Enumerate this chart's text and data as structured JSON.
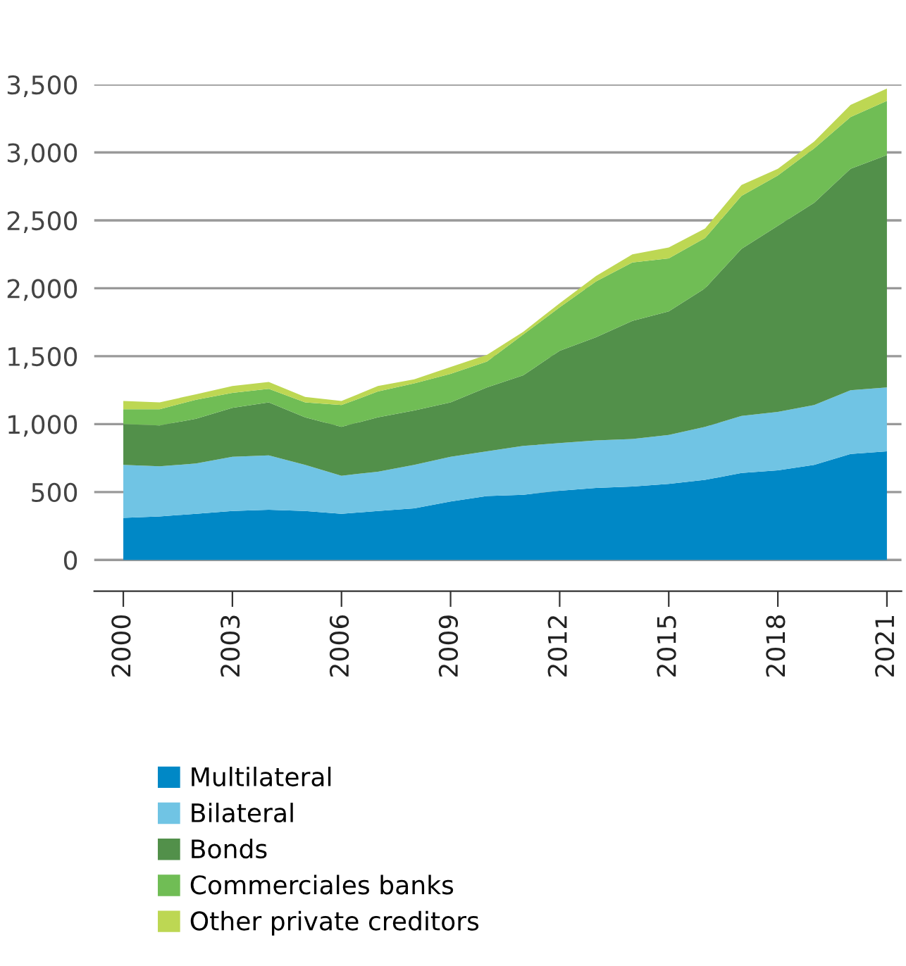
{
  "chart_data": {
    "type": "area",
    "stacked": true,
    "x": [
      2000,
      2001,
      2002,
      2003,
      2004,
      2005,
      2006,
      2007,
      2008,
      2009,
      2010,
      2011,
      2012,
      2013,
      2014,
      2015,
      2016,
      2017,
      2018,
      2019,
      2020,
      2021
    ],
    "series": [
      {
        "name": "Multilateral",
        "color": "#0088c6",
        "values": [
          310,
          320,
          340,
          360,
          370,
          360,
          340,
          360,
          380,
          430,
          470,
          480,
          510,
          530,
          540,
          560,
          590,
          640,
          660,
          700,
          780,
          800
        ]
      },
      {
        "name": "Bilateral",
        "color": "#70c4e4",
        "values": [
          390,
          370,
          370,
          400,
          400,
          340,
          280,
          290,
          320,
          330,
          330,
          360,
          350,
          350,
          350,
          360,
          390,
          420,
          430,
          440,
          470,
          470
        ]
      },
      {
        "name": "Bonds",
        "color": "#52904a",
        "values": [
          300,
          300,
          330,
          360,
          390,
          350,
          360,
          400,
          400,
          400,
          470,
          520,
          680,
          760,
          870,
          910,
          1020,
          1230,
          1370,
          1490,
          1630,
          1710
        ]
      },
      {
        "name": "Commerciales banks",
        "color": "#70bd55",
        "values": [
          110,
          120,
          140,
          110,
          100,
          110,
          160,
          190,
          200,
          210,
          190,
          300,
          320,
          410,
          430,
          390,
          370,
          390,
          370,
          400,
          380,
          400
        ]
      },
      {
        "name": "Other private creditors",
        "color": "#bdd753",
        "values": [
          60,
          50,
          40,
          50,
          50,
          40,
          30,
          40,
          30,
          50,
          50,
          20,
          30,
          40,
          60,
          80,
          70,
          80,
          50,
          50,
          90,
          90
        ]
      }
    ],
    "xlim": [
      1999.2,
      2021.4
    ],
    "xticks": [
      2000,
      2003,
      2006,
      2009,
      2012,
      2015,
      2018,
      2021
    ],
    "ylim": [
      -230,
      3500
    ],
    "yticks": [
      0,
      {
        "value": 500,
        "label": "500"
      },
      {
        "value": 1000,
        "label": "1,000"
      },
      {
        "value": 1500,
        "label": "1,500"
      },
      {
        "value": 2000,
        "label": "2,000"
      },
      {
        "value": 2500,
        "label": "2,500"
      },
      {
        "value": 3000,
        "label": "3,000"
      },
      {
        "value": 3500,
        "label": "3,500"
      }
    ],
    "grid": "y",
    "legend": "bottom"
  }
}
